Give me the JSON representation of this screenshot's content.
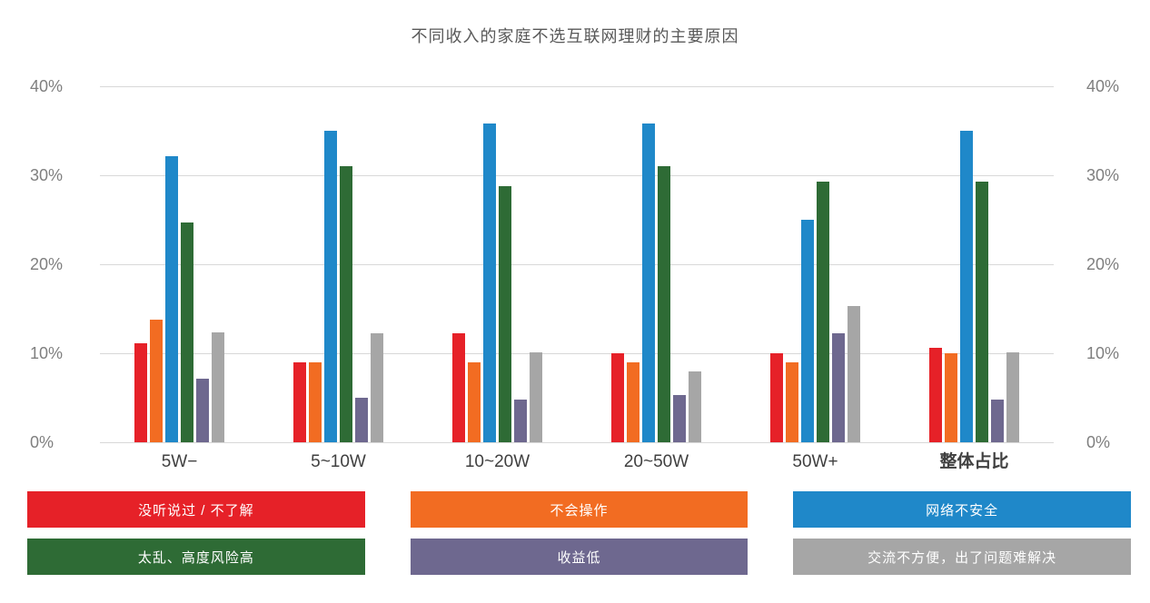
{
  "chart_data": {
    "type": "bar",
    "title": "不同收入的家庭不选互联网理财的主要原因",
    "categories": [
      "5W−",
      "5~10W",
      "10~20W",
      "20~50W",
      "50W+",
      "整体占比"
    ],
    "emphasized_category": "整体占比",
    "series": [
      {
        "name": "没听说过 / 不了解",
        "color": "#e62128",
        "values": [
          11.1,
          9.0,
          12.2,
          10.0,
          10.0,
          10.6
        ]
      },
      {
        "name": "不会操作",
        "color": "#f26c22",
        "values": [
          13.8,
          9.0,
          9.0,
          9.0,
          9.0,
          10.0
        ]
      },
      {
        "name": "网络不安全",
        "color": "#1f88c9",
        "values": [
          32.1,
          35.0,
          35.8,
          35.8,
          25.0,
          35.0
        ]
      },
      {
        "name": "太乱、高度风险高",
        "color": "#2e6b35",
        "values": [
          24.7,
          31.0,
          28.8,
          31.0,
          29.3,
          29.3
        ]
      },
      {
        "name": "收益低",
        "color": "#6e688f",
        "values": [
          7.1,
          5.0,
          4.8,
          5.3,
          12.2,
          4.8
        ]
      },
      {
        "name": "交流不方便，出了问题难解决",
        "color": "#a6a6a6",
        "values": [
          12.3,
          12.2,
          10.1,
          8.0,
          15.3,
          10.1
        ]
      }
    ],
    "ylim": [
      0,
      40
    ],
    "ytick_values": [
      0,
      10,
      20,
      30,
      40
    ],
    "ytick_labels": [
      "0%",
      "10%",
      "20%",
      "30%",
      "40%"
    ],
    "grid": true,
    "y_axis_sides": [
      "left",
      "right"
    ],
    "legend_position": "bottom",
    "legend_columns": 3
  }
}
